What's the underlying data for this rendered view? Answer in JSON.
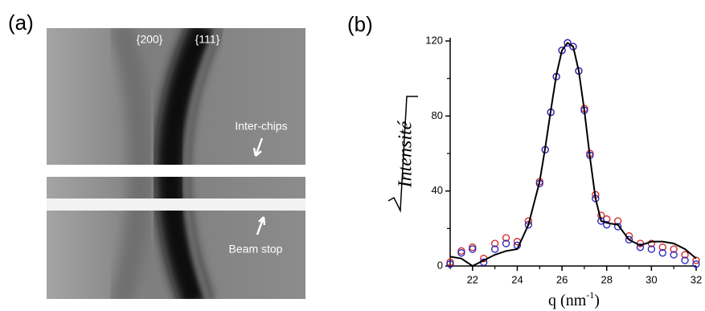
{
  "panel_a": {
    "label": "(a)",
    "ring_labels": [
      "{200}",
      "{111}"
    ],
    "annotations": [
      "Inter-chips",
      "Beam stop"
    ]
  },
  "chart_data": {
    "type": "line",
    "panel_label": "(b)",
    "x_label": [
      "q (nm",
      "-1",
      ")"
    ],
    "y_label": "Intensité",
    "x": [
      21,
      21.5,
      22,
      22.5,
      23,
      23.5,
      24,
      24.5,
      25,
      25.25,
      25.5,
      25.75,
      26,
      26.25,
      26.5,
      26.75,
      27,
      27.25,
      27.5,
      27.75,
      28,
      28.5,
      29,
      29.5,
      30,
      30.5,
      31,
      31.5,
      32
    ],
    "series": [
      {
        "color": "#d22020",
        "marker": "circle",
        "values": [
          2,
          8,
          10,
          4,
          12,
          15,
          13,
          24,
          45,
          62,
          82,
          101,
          115,
          119,
          117,
          104,
          84,
          60,
          38,
          27,
          25,
          24,
          16,
          12,
          12,
          10,
          9,
          6,
          3
        ]
      },
      {
        "color": "#2020c0",
        "marker": "circle",
        "values": [
          1,
          7,
          9,
          2,
          9,
          12,
          11,
          22,
          44,
          62,
          82,
          101,
          115,
          119,
          117,
          104,
          83,
          59,
          36,
          24,
          22,
          21,
          14,
          10,
          9,
          7,
          6,
          3,
          1
        ]
      },
      {
        "color": "#000000",
        "marker": "line",
        "values": [
          5,
          4,
          0,
          3,
          6,
          8,
          9,
          22,
          45,
          63,
          83,
          102,
          115,
          119,
          117,
          104,
          83,
          58,
          36,
          24,
          23,
          22,
          14,
          11,
          13,
          13,
          12,
          9,
          4
        ]
      }
    ],
    "xlim": [
      21,
      32
    ],
    "ylim": [
      0,
      120
    ],
    "xticks": [
      22,
      24,
      26,
      28,
      30,
      32
    ],
    "xticks_minor": [
      21,
      23,
      25,
      27,
      29,
      31
    ],
    "yticks": [
      0,
      40,
      80,
      120
    ],
    "yticks_minor": [
      20,
      60,
      100
    ]
  }
}
